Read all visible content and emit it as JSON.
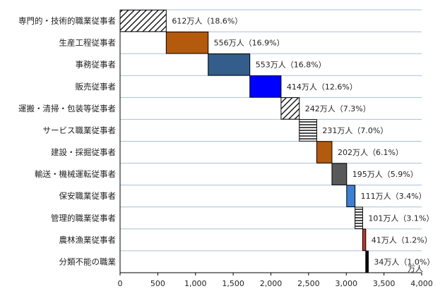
{
  "chart_data": {
    "type": "bar",
    "subtype": "waterfall-horizontal",
    "categories": [
      "専門的・技術的職業従事者",
      "生産工程従事者",
      "事務従事者",
      "販売従事者",
      "運搬・清掃・包装等従事者",
      "サービス職業従事者",
      "建設・採掘従事者",
      "輸送・機械運転従事者",
      "保安職業従事者",
      "管理的職業従事者",
      "農林漁業従事者",
      "分類不能の職業"
    ],
    "values": [
      612,
      556,
      553,
      414,
      242,
      231,
      202,
      195,
      111,
      101,
      41,
      34
    ],
    "data_labels": [
      "612万人（18.6%）",
      "556万人（16.9%）",
      "553万人（16.8%）",
      "414万人（12.6%）",
      "242万人（7.3%）",
      "231万人（7.0%）",
      "202万人（6.1%）",
      "195万人（5.9%）",
      "111万人（3.4%）",
      "101万人（3.1%）",
      "41万人（1.2%）",
      "34万人（1.0%）"
    ],
    "bar_styles": [
      {
        "fill": "#ffffff",
        "pattern": "diagonal",
        "stroke": "#000000"
      },
      {
        "fill": "#b35a0c",
        "pattern": "none",
        "stroke": "#000000"
      },
      {
        "fill": "#335d8a",
        "pattern": "none",
        "stroke": "#000000"
      },
      {
        "fill": "#0000ff",
        "pattern": "none",
        "stroke": "#000000"
      },
      {
        "fill": "#ffffff",
        "pattern": "diagonal",
        "stroke": "#000000"
      },
      {
        "fill": "#ffffff",
        "pattern": "horizontal",
        "stroke": "#000000"
      },
      {
        "fill": "#b35a0c",
        "pattern": "none",
        "stroke": "#000000"
      },
      {
        "fill": "#595959",
        "pattern": "none",
        "stroke": "#000000"
      },
      {
        "fill": "#3d7fd1",
        "pattern": "none",
        "stroke": "#000000"
      },
      {
        "fill": "#ffffff",
        "pattern": "horizontal",
        "stroke": "#000000"
      },
      {
        "fill": "#c0392b",
        "pattern": "none",
        "stroke": "#000000"
      },
      {
        "fill": "#000000",
        "pattern": "none",
        "stroke": "#000000"
      }
    ],
    "xlim": [
      0,
      4000
    ],
    "x_ticks": [
      0,
      500,
      1000,
      1500,
      2000,
      2500,
      3000,
      3500,
      4000
    ],
    "x_tick_labels": [
      "0",
      "500",
      "1,000",
      "1,500",
      "2,000",
      "2,500",
      "3,000",
      "3,500",
      "4,000"
    ],
    "x_unit": "万人",
    "grid": {
      "vertical": false,
      "horizontal": true
    },
    "gridline_color": "#a9bfd8"
  }
}
